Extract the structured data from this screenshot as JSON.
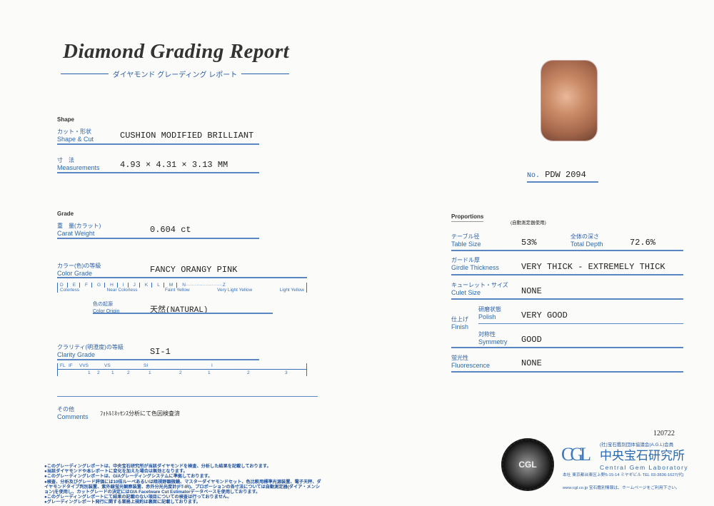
{
  "header": {
    "title": "Diamond Grading Report",
    "subtitle": "ダイヤモンド グレーディング レポート"
  },
  "shape": {
    "section": "Shape",
    "cut_jp": "カット・形状",
    "cut_en": "Shape & Cut",
    "cut_value": "CUSHION MODIFIED BRILLIANT",
    "meas_jp": "寸　法",
    "meas_en": "Measurements",
    "meas_value": "4.93 × 4.31 × 3.13 MM"
  },
  "grade": {
    "section": "Grade",
    "carat_jp": "重　量(カラット)",
    "carat_en": "Carat Weight",
    "carat_value": "0.604 ct",
    "color_jp": "カラー(色)の等級",
    "color_en": "Color Grade",
    "color_value": "FANCY ORANGY PINK",
    "color_scale": [
      "D",
      "E",
      "F",
      "G",
      "H",
      "I",
      "J",
      "K",
      "L",
      "M",
      "N························Z"
    ],
    "color_groups": [
      "Colorless",
      "Near Colorless",
      "Faint Yellow",
      "Very Light Yellow",
      "Light Yellow"
    ],
    "origin_jp": "色の起源",
    "origin_en": "Color Origin",
    "origin_value": "天然(NATURAL)",
    "clarity_jp": "クラリティ(明澄度)の等級",
    "clarity_en": "Clarity Grade",
    "clarity_value": "SI-1",
    "clarity_scale_top": [
      "FL",
      "IF",
      "VVS",
      "VS",
      "SI",
      "I"
    ],
    "clarity_scale_bottom": [
      "1",
      "2",
      "1",
      "2",
      "1",
      "2",
      "1",
      "2",
      "3"
    ]
  },
  "comments": {
    "jp": "その他",
    "en": "Comments",
    "value": "ﾌｫﾄﾙﾐﾈｯｾﾝｽ分析にて色因検査済"
  },
  "footer_notes": [
    "●このグレーディングレポートは、中央宝石研究所が当該ダイヤモンドを検査、分析した結果を記載しております。",
    "●当該ダイヤモンドや本レポートに変化を加えた場合は無効となります。",
    "●このグレーディングレポートは、GIAグレーディングシステムに準拠しております。",
    "●検査、分析及びグレード評価には10倍ルーペあるいは暗視野顕微鏡、マスターダイヤモンドセット、色比較用標準光源装置、電子天秤、ダイヤモンドタイプ判別装置、紫外線蛍光観察装置、赤外分光光度計(FT-IR)、プロポーションの各寸法については自動測定器(ダイア・メンション)を使用し、カットグレードの決定にはGIA Facetware Cut Estimatorデータベースを使用しております。",
    "●このグレーディングレポートにて結果の記載のない項目についての検査は行っておりません。",
    "●グレーディングレポート発行に関する業務上規約は裏面に記載しております。"
  ],
  "report": {
    "no_label": "No.",
    "no_value": "PDW 2094",
    "code": "120722"
  },
  "proportions": {
    "section": "Proportions",
    "note": "(自動測定器使用)",
    "table_jp": "テーブル径",
    "table_en": "Table Size",
    "table_value": "53%",
    "depth_jp": "全体の深さ",
    "depth_en": "Total Depth",
    "depth_value": "72.6%",
    "girdle_jp": "ガードル厚",
    "girdle_en": "Girdle Thickness",
    "girdle_value": "VERY THICK - EXTREMELY THICK",
    "culet_jp": "キューレット・サイズ",
    "culet_en": "Culet Size",
    "culet_value": "NONE",
    "finish_jp": "仕上げ",
    "finish_en": "Finish",
    "polish_jp": "研磨状態",
    "polish_en": "Polish",
    "polish_value": "VERY GOOD",
    "symmetry_jp": "対称性",
    "symmetry_en": "Symmetry",
    "symmetry_value": "GOOD",
    "fluor_jp": "蛍光性",
    "fluor_en": "Fluorescence",
    "fluor_value": "NONE"
  },
  "lab": {
    "seal_text": "CENTRAL GEM LABORATORY",
    "logo": "CGL",
    "member": "(社)宝石鑑別団体協議会(A.G.L)会員",
    "name_jp": "中央宝石研究所",
    "name_en": "Central Gem Laboratory",
    "address": "本社 東京都台東区上野5-15-14 ミヤギビル TEL 03-3836-1627(代)",
    "web": "www.cgl.co.jp 宝石鑑別情報は、ホームページをご利用下さい。"
  },
  "colors": {
    "accent": "#2a6ab0",
    "rule": "#5a86c2"
  }
}
